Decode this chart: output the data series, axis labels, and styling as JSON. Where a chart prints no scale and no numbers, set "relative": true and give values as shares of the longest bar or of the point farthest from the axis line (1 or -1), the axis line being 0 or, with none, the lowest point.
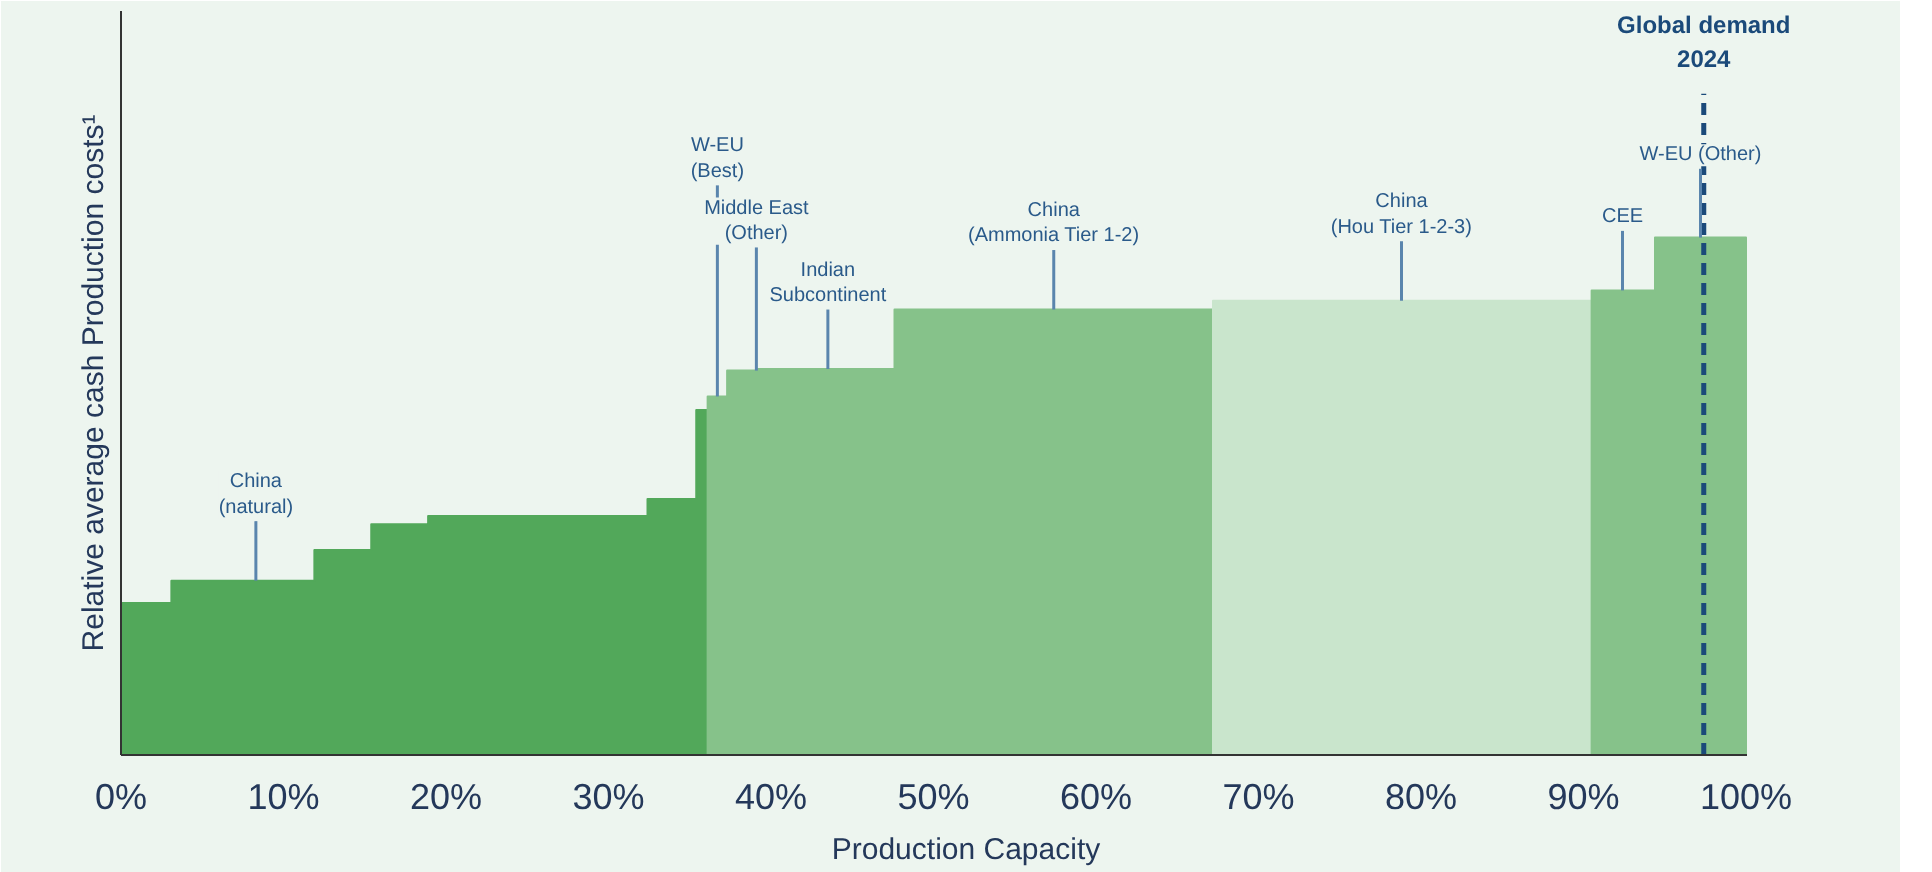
{
  "chart_data": {
    "type": "area",
    "relative": true,
    "ylabel": "Relative average cash Production costs¹",
    "xlabel": "Production Capacity",
    "xlim": [
      0,
      100
    ],
    "xticks": [
      {
        "value": 0,
        "label": "0%"
      },
      {
        "value": 10,
        "label": "10%"
      },
      {
        "value": 20,
        "label": "20%"
      },
      {
        "value": 30,
        "label": "30%"
      },
      {
        "value": 40,
        "label": "40%"
      },
      {
        "value": 50,
        "label": "50%"
      },
      {
        "value": 60,
        "label": "60%"
      },
      {
        "value": 70,
        "label": "70%"
      },
      {
        "value": 80,
        "label": "80%"
      },
      {
        "value": 90,
        "label": "90%"
      },
      {
        "value": 100,
        "label": "100%"
      }
    ],
    "tick_labels": "x",
    "grid": false,
    "series": [
      {
        "color": "#52a85a",
        "x": [
          0,
          3.1,
          3.1,
          11.9,
          11.9,
          15.4,
          15.4,
          18.9,
          18.9,
          32.4,
          32.4,
          35.4,
          35.4,
          36.1
        ],
        "values": [
          0.294,
          0.294,
          0.337,
          0.337,
          0.396,
          0.396,
          0.446,
          0.446,
          0.462,
          0.462,
          0.495,
          0.495,
          0.667,
          0.667
        ]
      },
      {
        "color": "#86c28a",
        "x": [
          36.1,
          37.3,
          37.3,
          39.1,
          39.1,
          47.6,
          47.6,
          67.2
        ],
        "values": [
          0.693,
          0.693,
          0.743,
          0.743,
          0.746,
          0.746,
          0.861,
          0.861
        ]
      },
      {
        "color": "#c9e5cc",
        "x": [
          67.2,
          90.5
        ],
        "values": [
          0.878,
          0.878
        ]
      },
      {
        "color": "#86c28a",
        "x": [
          90.5,
          94.4,
          94.4,
          100
        ],
        "values": [
          0.898,
          0.898,
          1.0,
          1.0
        ]
      }
    ],
    "ref_lines": [
      {
        "axis": "x",
        "value": 97.4,
        "label": "Global demand\n2024",
        "color": "#1b4a7a",
        "line_style": "dashed"
      }
    ],
    "annotations": [
      {
        "text": "China\n(natural)",
        "x": 8.3,
        "y": 0.337
      },
      {
        "text": "Indian\nSubcontinent",
        "x": 43.5,
        "y": 0.746
      },
      {
        "text": "Middle East\n(Other)",
        "x": 39.1,
        "y": 0.743
      },
      {
        "text": "W-EU\n(Best)",
        "x": 36.7,
        "y": 0.693
      },
      {
        "text": "China\n(Ammonia Tier 1-2)",
        "x": 57.4,
        "y": 0.861
      },
      {
        "text": "China\n(Hou Tier 1-2-3)",
        "x": 78.8,
        "y": 0.878
      },
      {
        "text": "CEE",
        "x": 92.4,
        "y": 0.898
      },
      {
        "text": "W-EU (Other)",
        "x": 97.2,
        "y": 1.0
      }
    ]
  }
}
